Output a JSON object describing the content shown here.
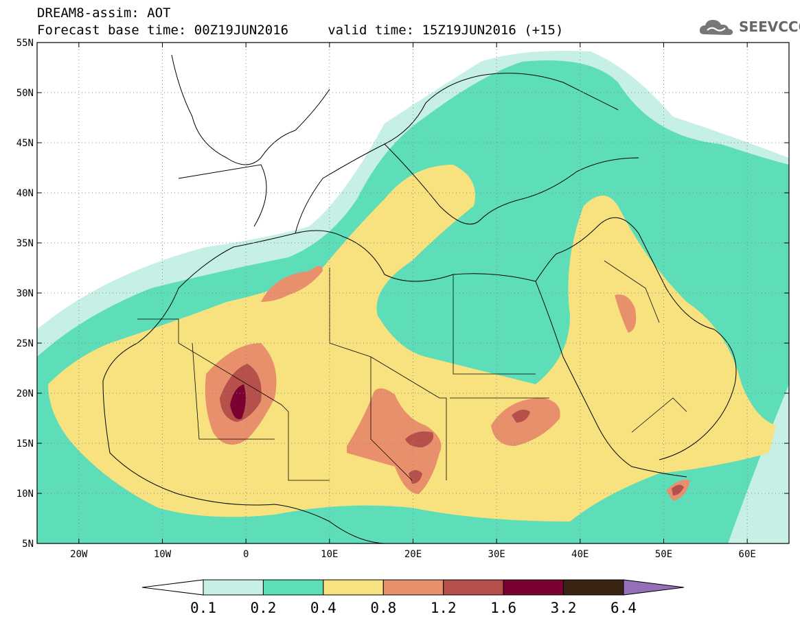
{
  "header": {
    "title": "DREAM8-assim: AOT",
    "subtitle": "Forecast base time: 00Z19JUN2016     valid time: 15Z19JUN2016 (+15)",
    "logo_text": "SEEVCCC"
  },
  "map": {
    "projection": "lat-lon",
    "lon_range": [
      -25,
      65
    ],
    "lat_range": [
      5,
      55
    ],
    "graticule_lines": "dotted",
    "lat_labels": [
      "55N",
      "50N",
      "45N",
      "40N",
      "35N",
      "30N",
      "25N",
      "20N",
      "15N",
      "10N",
      "5N"
    ],
    "lat_values": [
      55,
      50,
      45,
      40,
      35,
      30,
      25,
      20,
      15,
      10,
      5
    ],
    "lon_labels": [
      "20W",
      "10W",
      "0",
      "10E",
      "20E",
      "30E",
      "40E",
      "50E",
      "60E"
    ],
    "lon_values": [
      -20,
      -10,
      0,
      10,
      20,
      30,
      40,
      50,
      60
    ],
    "coastlines": "black",
    "country_borders": "black"
  },
  "colorbar": {
    "labels": [
      "0.1",
      "0.2",
      "0.4",
      "0.8",
      "1.2",
      "1.6",
      "3.2",
      "6.4"
    ],
    "below_color": "#ffffff",
    "above_color": "#9370b8",
    "colors": [
      "#c6efe6",
      "#5dddb8",
      "#f7e27f",
      "#e8906c",
      "#b5504a",
      "#7d0033",
      "#3a2413"
    ]
  },
  "colors": {
    "white": "#ffffff",
    "light_teal": "#c6efe6",
    "teal": "#5dddb8",
    "yellow": "#f7e27f",
    "orange": "#e8906c",
    "red": "#b5504a",
    "dark_red": "#7d0033"
  }
}
